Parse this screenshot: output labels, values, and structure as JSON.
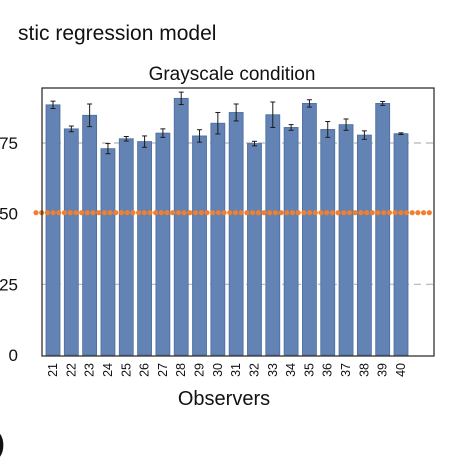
{
  "figure": {
    "suptitle": "stic regression model",
    "panel_letter": ")"
  },
  "colors": {
    "bar": "#6283b4",
    "bar_edge": "#4c6d9e",
    "reference": "#f07f2f",
    "gridline": "#b5b5b5",
    "errorbar": "#1a1a1a"
  },
  "chart_data": {
    "type": "bar",
    "title": "Grayscale condition",
    "xlabel": "Observers",
    "ylabel": "",
    "categories": [
      "21",
      "22",
      "23",
      "24",
      "25",
      "26",
      "27",
      "28",
      "29",
      "30",
      "31",
      "32",
      "33",
      "34",
      "35",
      "36",
      "37",
      "38",
      "39",
      "40"
    ],
    "values": [
      0.885,
      0.8,
      0.848,
      0.73,
      0.765,
      0.755,
      0.785,
      0.908,
      0.775,
      0.82,
      0.858,
      0.748,
      0.85,
      0.805,
      0.89,
      0.798,
      0.815,
      0.778,
      0.89,
      0.783
    ],
    "errors": [
      0.013,
      0.01,
      0.04,
      0.018,
      0.008,
      0.02,
      0.015,
      0.022,
      0.022,
      0.038,
      0.03,
      0.008,
      0.045,
      0.01,
      0.013,
      0.028,
      0.02,
      0.015,
      0.007,
      0.003
    ],
    "reference_line": 0.5,
    "yticks": [
      0,
      0.25,
      0.5,
      0.75
    ],
    "ytick_labels": [
      "0",
      ".25",
      ".50",
      ".75"
    ],
    "ylim": [
      0,
      0.95
    ],
    "grid": "horizontal dashed at .25 and .75"
  }
}
